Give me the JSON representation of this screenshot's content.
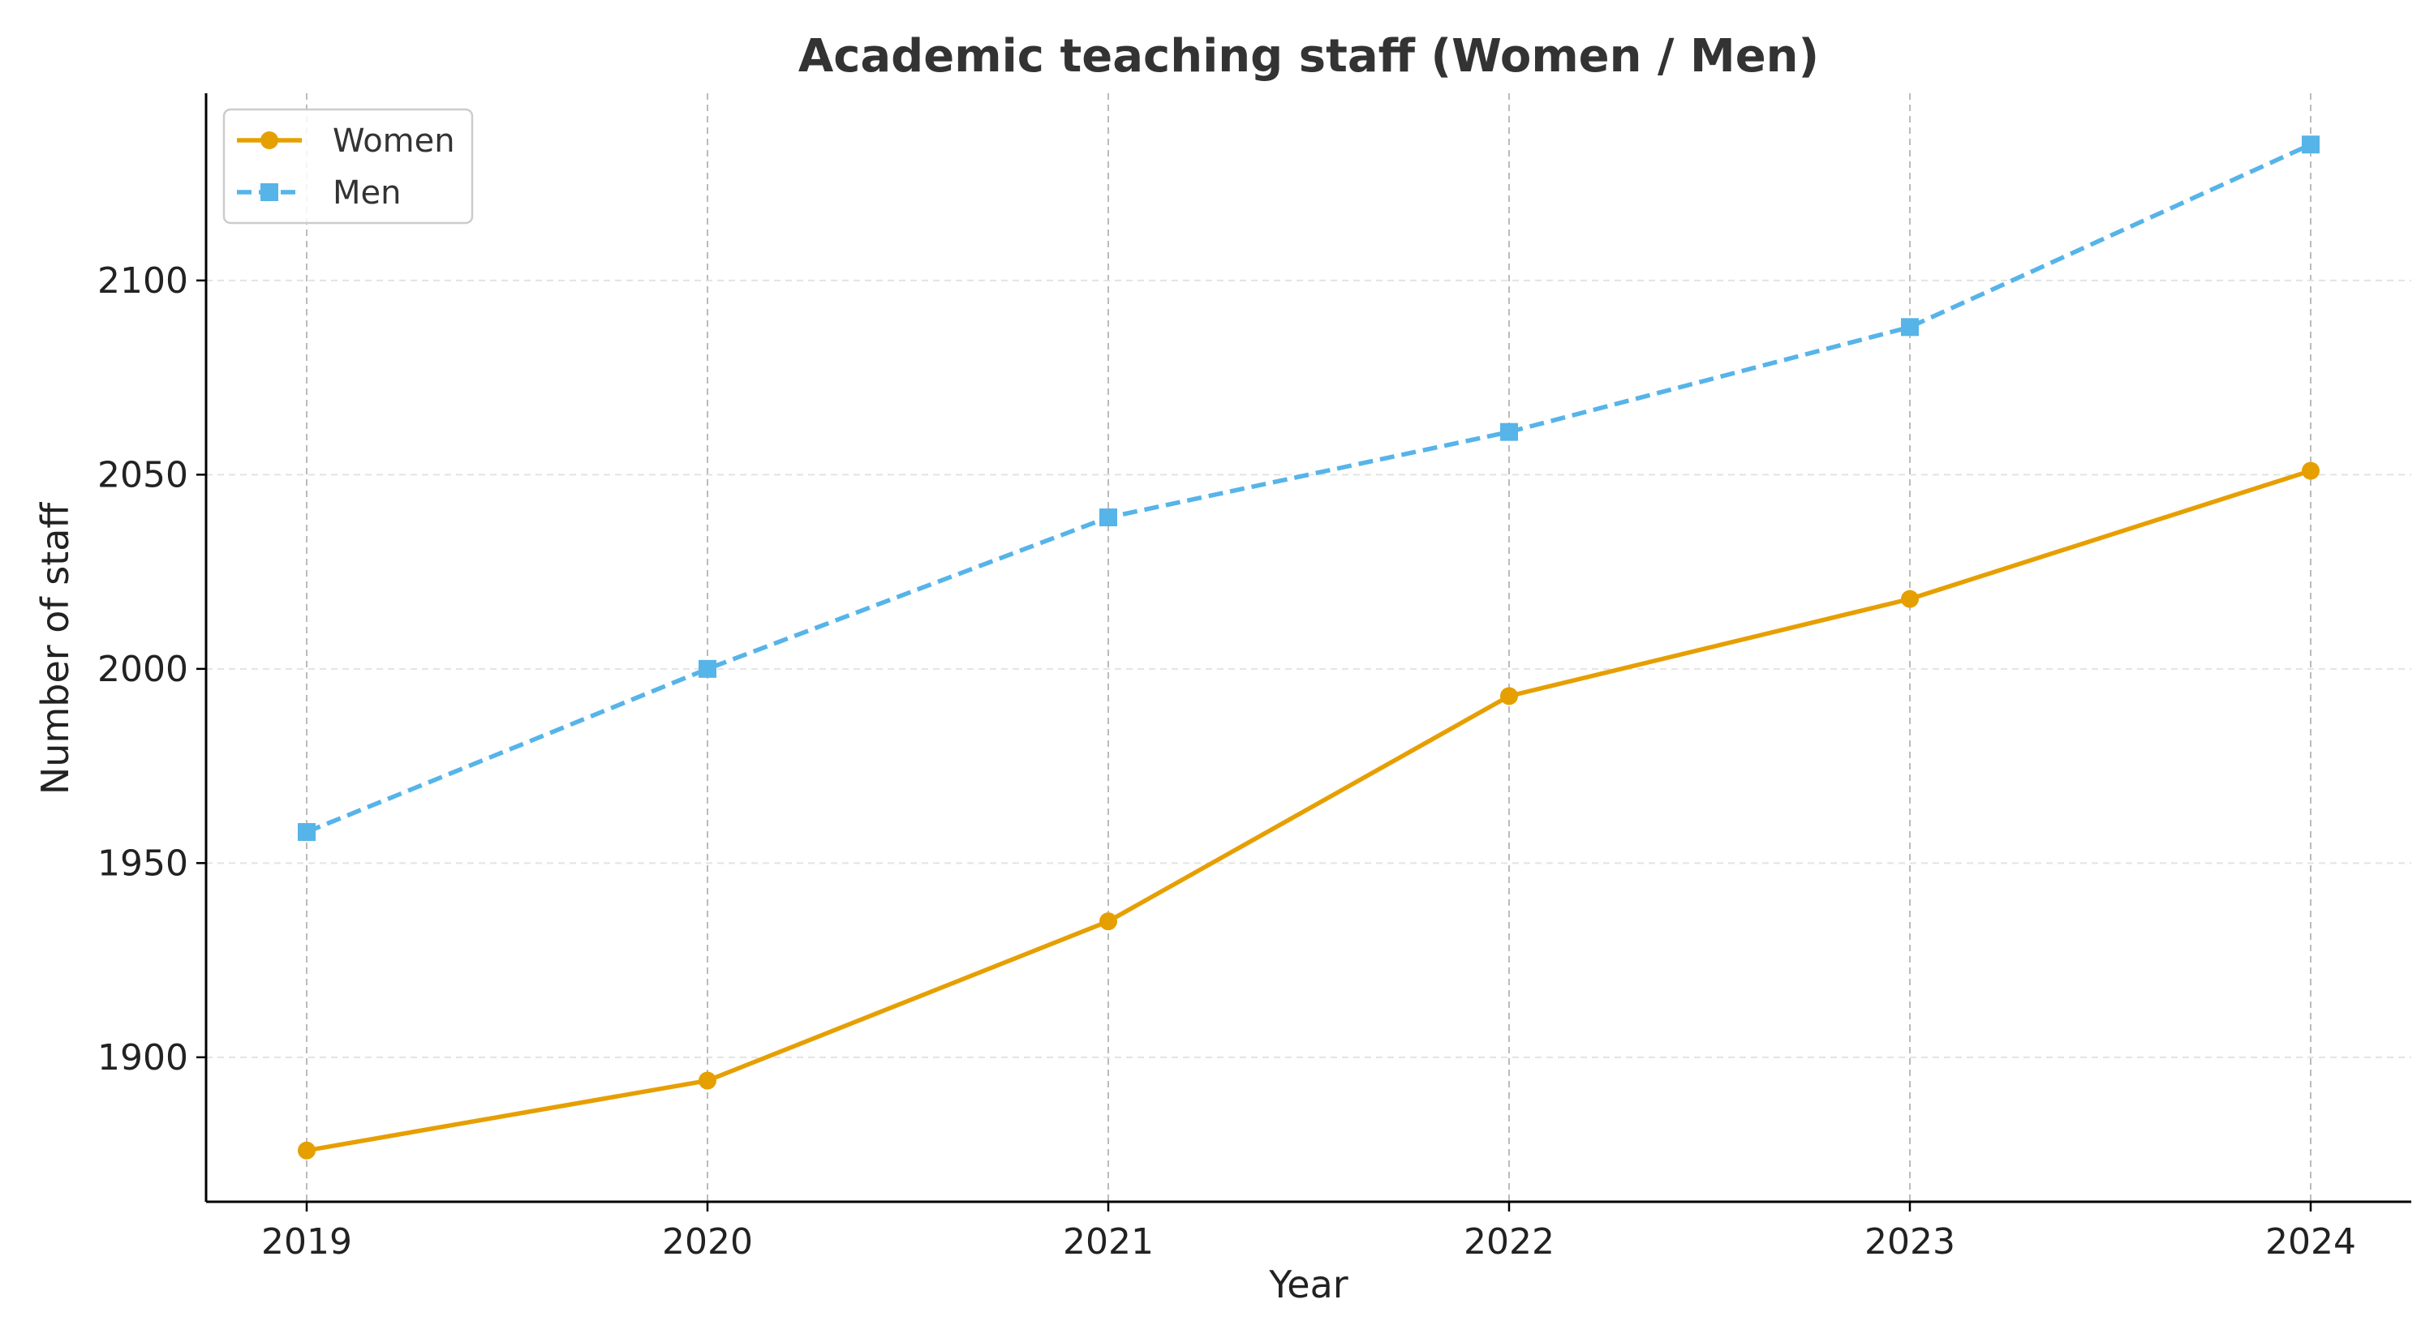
{
  "chart_data": {
    "type": "line",
    "title": "Academic teaching staff (Women / Men)",
    "xlabel": "Year",
    "ylabel": "Number of staff",
    "x": [
      "2019",
      "2020",
      "2021",
      "2022",
      "2023",
      "2024"
    ],
    "yticks": [
      1900,
      1950,
      2000,
      2050,
      2100
    ],
    "ylim": [
      1862.8,
      2148.2
    ],
    "grid": true,
    "legend": "top-left",
    "series": [
      {
        "name": "Women",
        "values": [
          1876,
          1894,
          1935,
          1993,
          2018,
          2051
        ],
        "color": "#E69F00",
        "marker": "circle",
        "line": "solid"
      },
      {
        "name": "Men",
        "values": [
          1958,
          2000,
          2039,
          2061,
          2088,
          2135
        ],
        "color": "#56B4E9",
        "marker": "square",
        "line": "dashed"
      }
    ]
  }
}
